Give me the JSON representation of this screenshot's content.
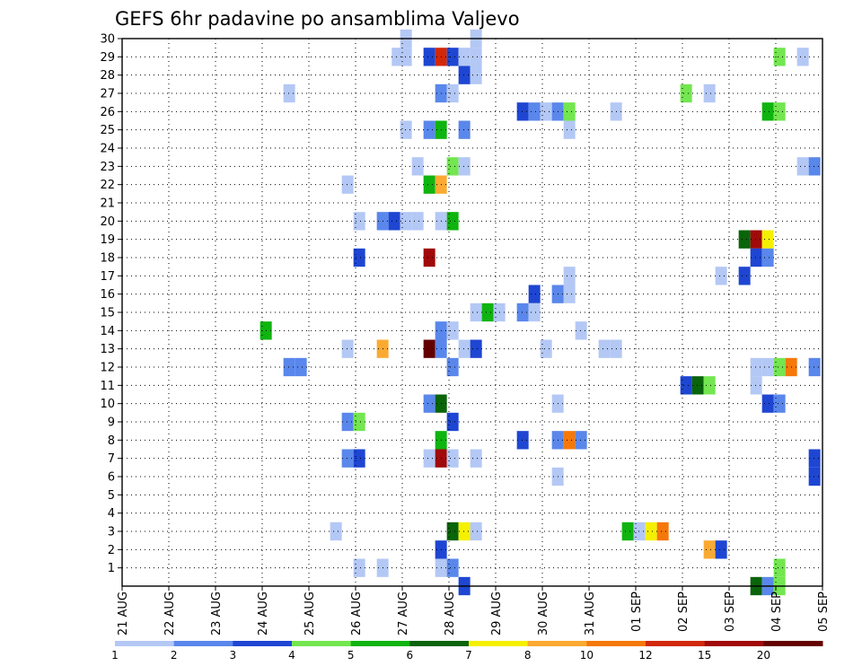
{
  "chart_data": {
    "type": "heatmap",
    "title": "GEFS 6hr padavine po ansamblima Valjevo",
    "xlabel": "",
    "ylabel": "",
    "x_tick_labels": [
      "21 AUG",
      "22 AUG",
      "23 AUG",
      "24 AUG",
      "25 AUG",
      "26 AUG",
      "27 AUG",
      "28 AUG",
      "29 AUG",
      "30 AUG",
      "31 AUG",
      "01 SEP",
      "02 SEP",
      "03 SEP",
      "04 SEP",
      "05 SEP"
    ],
    "x_range_days": [
      0,
      15
    ],
    "y_tick_labels": [
      "1",
      "2",
      "3",
      "4",
      "5",
      "6",
      "7",
      "8",
      "9",
      "10",
      "11",
      "12",
      "13",
      "14",
      "15",
      "16",
      "17",
      "18",
      "19",
      "20",
      "21",
      "22",
      "23",
      "24",
      "25",
      "26",
      "27",
      "28",
      "29",
      "30"
    ],
    "y_range": [
      0,
      30
    ],
    "grid": true,
    "colorbar": {
      "labels": [
        "1",
        "2",
        "3",
        "4",
        "5",
        "6",
        "7",
        "8",
        "10",
        "12",
        "15",
        "20"
      ],
      "colors": [
        "#b4c8f5",
        "#5a87eb",
        "#1e46d2",
        "#73e650",
        "#0fb40f",
        "#0a640a",
        "#f5f000",
        "#faaa32",
        "#f5780a",
        "#d2280a",
        "#a00a0a",
        "#640000"
      ]
    },
    "cells": [
      {
        "d": 5.9,
        "m": 29,
        "v": 1.5
      },
      {
        "d": 6.08,
        "m": 30,
        "v": 1.5
      },
      {
        "d": 6.08,
        "m": 29,
        "v": 1.5
      },
      {
        "d": 6.58,
        "m": 29,
        "v": 3.5
      },
      {
        "d": 6.83,
        "m": 29,
        "v": 13.5
      },
      {
        "d": 7.08,
        "m": 29,
        "v": 3.5
      },
      {
        "d": 7.33,
        "m": 29,
        "v": 1.5
      },
      {
        "d": 7.58,
        "m": 29,
        "v": 1.5
      },
      {
        "d": 7.58,
        "m": 30,
        "v": 1.5
      },
      {
        "d": 7.33,
        "m": 28,
        "v": 3.5
      },
      {
        "d": 7.58,
        "m": 28,
        "v": 1.5
      },
      {
        "d": 3.58,
        "m": 27,
        "v": 1.5
      },
      {
        "d": 6.83,
        "m": 27,
        "v": 2.5
      },
      {
        "d": 7.08,
        "m": 27,
        "v": 1.5
      },
      {
        "d": 8.58,
        "m": 26,
        "v": 3.5
      },
      {
        "d": 8.83,
        "m": 26,
        "v": 2.5
      },
      {
        "d": 9.08,
        "m": 26,
        "v": 1.5
      },
      {
        "d": 9.33,
        "m": 26,
        "v": 2.5
      },
      {
        "d": 9.58,
        "m": 26,
        "v": 4.5
      },
      {
        "d": 10.58,
        "m": 26,
        "v": 1.5
      },
      {
        "d": 6.08,
        "m": 25,
        "v": 1.5
      },
      {
        "d": 6.58,
        "m": 25,
        "v": 2.5
      },
      {
        "d": 6.83,
        "m": 25,
        "v": 5.5
      },
      {
        "d": 7.33,
        "m": 25,
        "v": 2.5
      },
      {
        "d": 9.58,
        "m": 25,
        "v": 1.5
      },
      {
        "d": 6.33,
        "m": 23,
        "v": 1.5
      },
      {
        "d": 7.08,
        "m": 23,
        "v": 4.5
      },
      {
        "d": 7.33,
        "m": 23,
        "v": 1.5
      },
      {
        "d": 4.83,
        "m": 22,
        "v": 1.5
      },
      {
        "d": 6.58,
        "m": 22,
        "v": 5.5
      },
      {
        "d": 6.83,
        "m": 22,
        "v": 9
      },
      {
        "d": 5.08,
        "m": 20,
        "v": 1.5
      },
      {
        "d": 5.58,
        "m": 20,
        "v": 2.5
      },
      {
        "d": 5.83,
        "m": 20,
        "v": 3.5
      },
      {
        "d": 6.08,
        "m": 20,
        "v": 1.5
      },
      {
        "d": 6.33,
        "m": 20,
        "v": 1.5
      },
      {
        "d": 6.83,
        "m": 20,
        "v": 1.5
      },
      {
        "d": 7.08,
        "m": 20,
        "v": 5.5
      },
      {
        "d": 5.08,
        "m": 18,
        "v": 3.5
      },
      {
        "d": 6.58,
        "m": 18,
        "v": 17.5
      },
      {
        "d": 9.58,
        "m": 17,
        "v": 1.5
      },
      {
        "d": 9.58,
        "m": 16,
        "v": 1.5
      },
      {
        "d": 8.83,
        "m": 16,
        "v": 3.5
      },
      {
        "d": 9.33,
        "m": 16,
        "v": 2.5
      },
      {
        "d": 7.58,
        "m": 15,
        "v": 1.5
      },
      {
        "d": 7.83,
        "m": 15,
        "v": 5.5
      },
      {
        "d": 8.08,
        "m": 15,
        "v": 1.5
      },
      {
        "d": 8.58,
        "m": 15,
        "v": 2.5
      },
      {
        "d": 8.83,
        "m": 15,
        "v": 1.5
      },
      {
        "d": 3.08,
        "m": 14,
        "v": 5.5
      },
      {
        "d": 6.83,
        "m": 14,
        "v": 2.5
      },
      {
        "d": 7.08,
        "m": 14,
        "v": 1.5
      },
      {
        "d": 9.83,
        "m": 14,
        "v": 1.5
      },
      {
        "d": 4.83,
        "m": 13,
        "v": 1.5
      },
      {
        "d": 5.58,
        "m": 13,
        "v": 9
      },
      {
        "d": 6.58,
        "m": 13,
        "v": 25
      },
      {
        "d": 6.83,
        "m": 13,
        "v": 2.5
      },
      {
        "d": 7.33,
        "m": 13,
        "v": 1.5
      },
      {
        "d": 7.58,
        "m": 13,
        "v": 3.5
      },
      {
        "d": 9.08,
        "m": 13,
        "v": 1.5
      },
      {
        "d": 10.33,
        "m": 13,
        "v": 1.5
      },
      {
        "d": 10.58,
        "m": 13,
        "v": 1.5
      },
      {
        "d": 3.58,
        "m": 12,
        "v": 2.5
      },
      {
        "d": 3.83,
        "m": 12,
        "v": 2.5
      },
      {
        "d": 7.08,
        "m": 12,
        "v": 2.5
      },
      {
        "d": 6.58,
        "m": 10,
        "v": 2.5
      },
      {
        "d": 6.83,
        "m": 10,
        "v": 6.5
      },
      {
        "d": 9.33,
        "m": 10,
        "v": 1.5
      },
      {
        "d": 4.83,
        "m": 9,
        "v": 2.5
      },
      {
        "d": 5.08,
        "m": 9,
        "v": 4.5
      },
      {
        "d": 7.08,
        "m": 9,
        "v": 3.5
      },
      {
        "d": 6.83,
        "m": 8,
        "v": 5.5
      },
      {
        "d": 8.58,
        "m": 8,
        "v": 3.5
      },
      {
        "d": 9.33,
        "m": 8,
        "v": 2.5
      },
      {
        "d": 9.58,
        "m": 8,
        "v": 11
      },
      {
        "d": 9.83,
        "m": 8,
        "v": 2.5
      },
      {
        "d": 4.83,
        "m": 7,
        "v": 2.5
      },
      {
        "d": 5.08,
        "m": 7,
        "v": 3.5
      },
      {
        "d": 6.58,
        "m": 7,
        "v": 1.5
      },
      {
        "d": 6.83,
        "m": 7,
        "v": 17.5
      },
      {
        "d": 7.08,
        "m": 7,
        "v": 1.5
      },
      {
        "d": 7.58,
        "m": 7,
        "v": 1.5
      },
      {
        "d": 9.33,
        "m": 6,
        "v": 1.5
      },
      {
        "d": 4.58,
        "m": 3,
        "v": 1.5
      },
      {
        "d": 7.08,
        "m": 3,
        "v": 6.5
      },
      {
        "d": 7.33,
        "m": 3,
        "v": 7.5
      },
      {
        "d": 7.58,
        "m": 3,
        "v": 1.5
      },
      {
        "d": 10.83,
        "m": 3,
        "v": 5.5
      },
      {
        "d": 11.08,
        "m": 3,
        "v": 1.5
      },
      {
        "d": 11.33,
        "m": 3,
        "v": 7.5
      },
      {
        "d": 11.58,
        "m": 3,
        "v": 11
      },
      {
        "d": 6.83,
        "m": 2,
        "v": 3.5
      },
      {
        "d": 12.58,
        "m": 2,
        "v": 9
      },
      {
        "d": 12.83,
        "m": 2,
        "v": 3.5
      },
      {
        "d": 5.08,
        "m": 1,
        "v": 1.5
      },
      {
        "d": 5.58,
        "m": 1,
        "v": 1.5
      },
      {
        "d": 6.83,
        "m": 1,
        "v": 1.5
      },
      {
        "d": 7.08,
        "m": 1,
        "v": 2.5
      },
      {
        "d": 7.33,
        "m": 0,
        "v": 3.5
      },
      {
        "d": 14.08,
        "m": 29,
        "v": 4.5
      },
      {
        "d": 14.58,
        "m": 29,
        "v": 1.5
      },
      {
        "d": 12.08,
        "m": 27,
        "v": 4.5
      },
      {
        "d": 12.58,
        "m": 27,
        "v": 1.5
      },
      {
        "d": 13.83,
        "m": 26,
        "v": 5.5
      },
      {
        "d": 14.08,
        "m": 26,
        "v": 4.5
      },
      {
        "d": 14.58,
        "m": 23,
        "v": 1.5
      },
      {
        "d": 14.83,
        "m": 23,
        "v": 2.5
      },
      {
        "d": 13.33,
        "m": 19,
        "v": 6.5
      },
      {
        "d": 13.58,
        "m": 19,
        "v": 17.5
      },
      {
        "d": 13.83,
        "m": 19,
        "v": 7.5
      },
      {
        "d": 13.58,
        "m": 18,
        "v": 3.5
      },
      {
        "d": 13.83,
        "m": 18,
        "v": 2.5
      },
      {
        "d": 12.83,
        "m": 17,
        "v": 1.5
      },
      {
        "d": 13.33,
        "m": 17,
        "v": 3.5
      },
      {
        "d": 13.58,
        "m": 12,
        "v": 1.5
      },
      {
        "d": 13.83,
        "m": 12,
        "v": 1.5
      },
      {
        "d": 14.08,
        "m": 12,
        "v": 4.5
      },
      {
        "d": 14.33,
        "m": 12,
        "v": 11
      },
      {
        "d": 14.83,
        "m": 12,
        "v": 2.5
      },
      {
        "d": 13.58,
        "m": 11,
        "v": 1.5
      },
      {
        "d": 12.08,
        "m": 11,
        "v": 3.5
      },
      {
        "d": 12.33,
        "m": 11,
        "v": 6.5
      },
      {
        "d": 12.58,
        "m": 11,
        "v": 4.5
      },
      {
        "d": 13.83,
        "m": 10,
        "v": 3.5
      },
      {
        "d": 14.08,
        "m": 10,
        "v": 2.5
      },
      {
        "d": 14.83,
        "m": 7,
        "v": 3.5
      },
      {
        "d": 14.83,
        "m": 6,
        "v": 3.5
      },
      {
        "d": 14.08,
        "m": 1,
        "v": 4.5
      },
      {
        "d": 14.08,
        "m": 0,
        "v": 4.5
      },
      {
        "d": 13.58,
        "m": 0,
        "v": 6.5
      },
      {
        "d": 13.83,
        "m": 0,
        "v": 2.5
      }
    ]
  }
}
